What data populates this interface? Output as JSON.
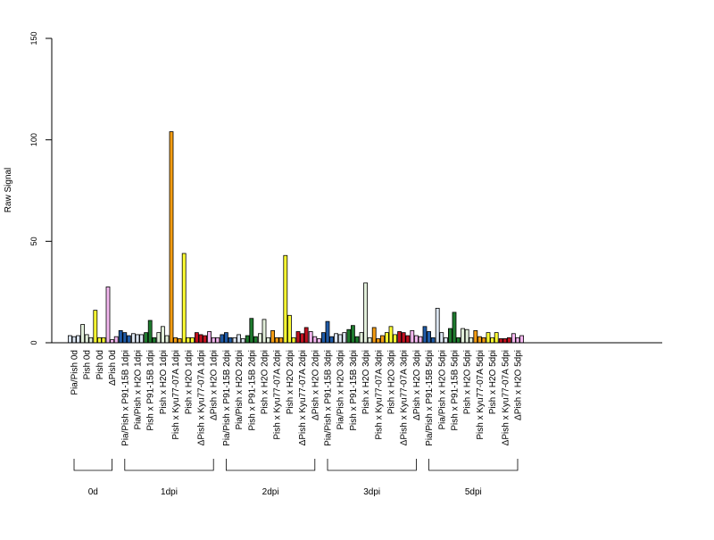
{
  "chart_data": {
    "type": "bar",
    "ylabel": "Raw Signal",
    "ylim": [
      0,
      150
    ],
    "yticks": [
      "0",
      "50",
      "100",
      "150"
    ],
    "grid": false,
    "legend": "none",
    "groups": [
      {
        "name": "0d",
        "categories": [
          {
            "label": "Pia/Pish 0d",
            "colors": [
              "#dce6f2",
              "#dce6f2",
              "#dce6f2"
            ],
            "values": [
              3.5,
              3.0,
              3.5
            ]
          },
          {
            "label": "Pish 0d",
            "colors": [
              "#e2efda",
              "#e2efda",
              "#e2efda"
            ],
            "values": [
              9.0,
              4.0,
              2.5
            ]
          },
          {
            "label": "Pish 0d",
            "colors": [
              "#ffff33",
              "#ffff33",
              "#ffff33"
            ],
            "values": [
              16.0,
              2.5,
              2.5
            ]
          },
          {
            "label": "ΔPish 0d",
            "colors": [
              "#f4b8f0",
              "#f4b8f0",
              "#f4b8f0"
            ],
            "values": [
              27.5,
              1.5,
              3.0
            ]
          }
        ]
      },
      {
        "name": "1dpi",
        "categories": [
          {
            "label": "Pia/Pish x P91-15B 1dpi",
            "colors": [
              "#1f5ba8",
              "#1f5ba8",
              "#1f5ba8"
            ],
            "values": [
              6.0,
              5.0,
              3.5
            ]
          },
          {
            "label": "Pia/Pish x H2O 1dpi",
            "colors": [
              "#dce6f2",
              "#dce6f2",
              "#dce6f2"
            ],
            "values": [
              4.5,
              4.0,
              4.0
            ]
          },
          {
            "label": "Pish x P91-15B 1dpi",
            "colors": [
              "#1e7b2e",
              "#1e7b2e",
              "#1e7b2e"
            ],
            "values": [
              5.0,
              11.0,
              2.5
            ]
          },
          {
            "label": "Pish x H2O 1dpi",
            "colors": [
              "#e2efda",
              "#e2efda",
              "#e2efda"
            ],
            "values": [
              5.0,
              8.0,
              3.5
            ]
          },
          {
            "label": "Pish x Kyu77-07A 1dpi",
            "colors": [
              "#f39c12",
              "#f39c12",
              "#f39c12"
            ],
            "values": [
              104.0,
              2.5,
              2.0
            ]
          },
          {
            "label": "Pish x H2O 1dpi",
            "colors": [
              "#ffff33",
              "#ffff33",
              "#ffff33"
            ],
            "values": [
              44.0,
              2.5,
              2.5
            ]
          },
          {
            "label": "ΔPish x Kyu77-07A 1dpi",
            "colors": [
              "#c0111f",
              "#c0111f",
              "#c0111f"
            ],
            "values": [
              5.0,
              4.0,
              3.5
            ]
          },
          {
            "label": "ΔPish x H2O 1dpi",
            "colors": [
              "#f4b8f0",
              "#f4b8f0",
              "#f4b8f0"
            ],
            "values": [
              5.5,
              2.5,
              2.5
            ]
          }
        ]
      },
      {
        "name": "2dpi",
        "categories": [
          {
            "label": "Pia/Pish x P91-15B 2dpi",
            "colors": [
              "#1f5ba8",
              "#1f5ba8",
              "#1f5ba8"
            ],
            "values": [
              4.0,
              5.0,
              2.5
            ]
          },
          {
            "label": "Pia/Pish x H2O 2dpi",
            "colors": [
              "#dce6f2",
              "#dce6f2",
              "#dce6f2"
            ],
            "values": [
              2.5,
              4.0,
              2.0
            ]
          },
          {
            "label": "Pish x P91-15B 2dpi",
            "colors": [
              "#1e7b2e",
              "#1e7b2e",
              "#1e7b2e"
            ],
            "values": [
              3.5,
              12.0,
              3.0
            ]
          },
          {
            "label": "Pish x H2O 2dpi",
            "colors": [
              "#e2efda",
              "#e2efda",
              "#e2efda"
            ],
            "values": [
              4.5,
              11.5,
              2.5
            ]
          },
          {
            "label": "Pish x Kyu77-07A 2dpi",
            "colors": [
              "#f39c12",
              "#f39c12",
              "#f39c12"
            ],
            "values": [
              6.0,
              2.5,
              2.5
            ]
          },
          {
            "label": "Pish x H2O 2dpi",
            "colors": [
              "#ffff33",
              "#ffff33",
              "#ffff33"
            ],
            "values": [
              43.0,
              13.5,
              2.5
            ]
          },
          {
            "label": "ΔPish x Kyu77-07A 2dpi",
            "colors": [
              "#c0111f",
              "#c0111f",
              "#c0111f"
            ],
            "values": [
              5.5,
              4.5,
              7.5
            ]
          },
          {
            "label": "ΔPish x H2O 2dpi",
            "colors": [
              "#f4b8f0",
              "#f4b8f0",
              "#f4b8f0"
            ],
            "values": [
              5.5,
              3.0,
              2.0
            ]
          }
        ]
      },
      {
        "name": "3dpi",
        "categories": [
          {
            "label": "Pia/Pish x P91-15B 3dpi",
            "colors": [
              "#1f5ba8",
              "#1f5ba8",
              "#1f5ba8"
            ],
            "values": [
              5.0,
              10.5,
              3.0
            ]
          },
          {
            "label": "Pia/Pish x H2O 3dpi",
            "colors": [
              "#dce6f2",
              "#dce6f2",
              "#dce6f2"
            ],
            "values": [
              4.5,
              4.0,
              5.0
            ]
          },
          {
            "label": "Pish x P91-15B 3dpi",
            "colors": [
              "#1e7b2e",
              "#1e7b2e",
              "#1e7b2e"
            ],
            "values": [
              6.5,
              8.5,
              3.0
            ]
          },
          {
            "label": "Pish x H2O 3dpi",
            "colors": [
              "#e2efda",
              "#e2efda",
              "#e2efda"
            ],
            "values": [
              5.0,
              29.5,
              2.5
            ]
          },
          {
            "label": "Pish x Kyu77-07A 3dpi",
            "colors": [
              "#f39c12",
              "#f39c12",
              "#f39c12"
            ],
            "values": [
              7.5,
              2.0,
              3.5
            ]
          },
          {
            "label": "Pish x H2O 3dpi",
            "colors": [
              "#ffff33",
              "#ffff33",
              "#ffff33"
            ],
            "values": [
              5.0,
              8.0,
              4.0
            ]
          },
          {
            "label": "ΔPish x Kyu77-07A 3dpi",
            "colors": [
              "#c0111f",
              "#c0111f",
              "#c0111f"
            ],
            "values": [
              5.5,
              5.0,
              3.5
            ]
          },
          {
            "label": "ΔPish x H2O 3dpi",
            "colors": [
              "#f4b8f0",
              "#f4b8f0",
              "#f4b8f0"
            ],
            "values": [
              6.0,
              3.5,
              3.0
            ]
          }
        ]
      },
      {
        "name": "5dpi",
        "categories": [
          {
            "label": "Pia/Pish x P91-15B 5dpi",
            "colors": [
              "#1f5ba8",
              "#1f5ba8",
              "#1f5ba8"
            ],
            "values": [
              8.0,
              5.5,
              2.5
            ]
          },
          {
            "label": "Pia/Pish x H2O 5dpi",
            "colors": [
              "#dce6f2",
              "#dce6f2",
              "#dce6f2"
            ],
            "values": [
              17.0,
              5.0,
              2.5
            ]
          },
          {
            "label": "Pish x P91-15B 5dpi",
            "colors": [
              "#1e7b2e",
              "#1e7b2e",
              "#1e7b2e"
            ],
            "values": [
              7.0,
              15.0,
              2.5
            ]
          },
          {
            "label": "Pish x H2O 5dpi",
            "colors": [
              "#e2efda",
              "#e2efda",
              "#e2efda"
            ],
            "values": [
              7.0,
              6.5,
              2.5
            ]
          },
          {
            "label": "Pish x Kyu77-07A 5dpi",
            "colors": [
              "#f39c12",
              "#f39c12",
              "#f39c12"
            ],
            "values": [
              6.0,
              3.0,
              2.5
            ]
          },
          {
            "label": "Pish x H2O 5dpi",
            "colors": [
              "#ffff33",
              "#ffff33",
              "#ffff33"
            ],
            "values": [
              5.0,
              2.5,
              5.0
            ]
          },
          {
            "label": "ΔPish x Kyu77-07A 5dpi",
            "colors": [
              "#c0111f",
              "#c0111f",
              "#c0111f"
            ],
            "values": [
              2.0,
              2.0,
              2.5
            ]
          },
          {
            "label": "ΔPish x H2O 5dpi",
            "colors": [
              "#f4b8f0",
              "#f4b8f0",
              "#f4b8f0"
            ],
            "values": [
              4.5,
              2.5,
              3.5
            ]
          }
        ]
      }
    ]
  }
}
